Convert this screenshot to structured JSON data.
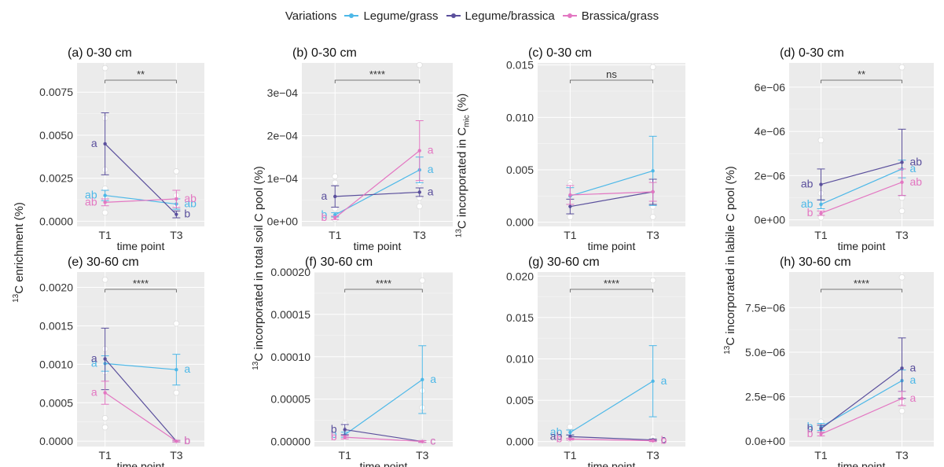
{
  "legend": {
    "title": "Variations",
    "items": [
      {
        "name": "Legume/grass",
        "color": "#4db8e8"
      },
      {
        "name": "Legume/brassica",
        "color": "#5a4f9c"
      },
      {
        "name": "Brassica/grass",
        "color": "#e377c2"
      }
    ]
  },
  "y_labels": {
    "col1_sup": "13",
    "col1": "C enrichment (%)",
    "col2_sup": "13",
    "col2": "C incorporated in total soil C pool (%)",
    "col3_sup": "13",
    "col3_a": "C incorporated in C",
    "col3_sub": "mic",
    "col3_b": " (%)",
    "col4_sup": "13",
    "col4": "C incorporated in labile C pool (%)"
  },
  "chart_data": [
    {
      "type": "line",
      "panel": "(a) 0-30 cm",
      "title": "(a) 0-30 cm",
      "xlabel": "time point",
      "categories": [
        "T1",
        "T3"
      ],
      "ylim": [
        -0.0003,
        0.0092
      ],
      "yticks": [
        0,
        0.0025,
        0.005,
        0.0075
      ],
      "yticklabels": [
        "0.0000",
        "0.0025",
        "0.0050",
        "0.0075"
      ],
      "sig": "**",
      "series": [
        {
          "name": "Legume/grass",
          "values": [
            0.0015,
            0.001
          ],
          "err": [
            0.0003,
            0.0003
          ],
          "letters": [
            "ab",
            "ab"
          ]
        },
        {
          "name": "Legume/brassica",
          "values": [
            0.0045,
            0.0004
          ],
          "err": [
            0.0018,
            0.0002
          ],
          "letters": [
            "a",
            "b"
          ]
        },
        {
          "name": "Brassica/grass",
          "values": [
            0.0011,
            0.0013
          ],
          "err": [
            0.0002,
            0.0005
          ],
          "letters": [
            "ab",
            "ab"
          ]
        }
      ],
      "points": [
        [
          0,
          0.0089
        ],
        [
          0,
          0.006
        ],
        [
          0,
          0.003
        ],
        [
          0,
          0.0019
        ],
        [
          0,
          0.0013
        ],
        [
          0,
          0.0005
        ],
        [
          1,
          0.0029
        ],
        [
          1,
          0.0015
        ],
        [
          1,
          0.0009
        ],
        [
          1,
          0.0004
        ]
      ]
    },
    {
      "type": "line",
      "panel": "(b) 0-30 cm",
      "title": "(b) 0-30 cm",
      "xlabel": "time point",
      "categories": [
        "T1",
        "T3"
      ],
      "ylim": [
        -1.2e-05,
        0.00037
      ],
      "yticks": [
        0,
        0.0001,
        0.0002,
        0.0003
      ],
      "yticklabels": [
        "0e+00",
        "1e−04",
        "2e−04",
        "3e−04"
      ],
      "sig": "****",
      "series": [
        {
          "name": "Legume/grass",
          "values": [
            1.5e-05,
            0.00012
          ],
          "err": [
            5e-06,
            3e-05
          ],
          "letters": [
            "b",
            "a"
          ]
        },
        {
          "name": "Legume/brassica",
          "values": [
            5.8e-05,
            6.8e-05
          ],
          "err": [
            2.5e-05,
            1e-05
          ],
          "letters": [
            "a",
            "a"
          ]
        },
        {
          "name": "Brassica/grass",
          "values": [
            8e-06,
            0.000165
          ],
          "err": [
            4e-06,
            7e-05
          ],
          "letters": [
            "b",
            "a"
          ]
        }
      ],
      "points": [
        [
          0,
          0.000105
        ],
        [
          0,
          9e-05
        ],
        [
          0,
          3e-05
        ],
        [
          0,
          1.2e-05
        ],
        [
          0,
          5e-06
        ],
        [
          1,
          0.000365
        ],
        [
          1,
          9e-05
        ],
        [
          1,
          5.5e-05
        ],
        [
          1,
          3.5e-05
        ]
      ]
    },
    {
      "type": "line",
      "panel": "(c) 0-30 cm",
      "title": "(c) 0-30 cm",
      "xlabel": "time point",
      "categories": [
        "T1",
        "T3"
      ],
      "ylim": [
        -0.0004,
        0.0152
      ],
      "yticks": [
        0,
        0.005,
        0.01,
        0.015
      ],
      "yticklabels": [
        "0.000",
        "0.005",
        "0.010",
        "0.015"
      ],
      "sig": "ns",
      "series": [
        {
          "name": "Legume/grass",
          "values": [
            0.0025,
            0.0049
          ],
          "err": [
            0.0008,
            0.0033
          ],
          "letters": [
            "",
            ""
          ]
        },
        {
          "name": "Legume/brassica",
          "values": [
            0.0015,
            0.0029
          ],
          "err": [
            0.0007,
            0.0012
          ],
          "letters": [
            "",
            ""
          ]
        },
        {
          "name": "Brassica/grass",
          "values": [
            0.0026,
            0.0029
          ],
          "err": [
            0.0009,
            0.0009
          ],
          "letters": [
            "",
            ""
          ]
        }
      ],
      "points": [
        [
          0,
          0.0038
        ],
        [
          0,
          0.0035
        ],
        [
          0,
          0.0015
        ],
        [
          0,
          0.0005
        ],
        [
          1,
          0.0148
        ],
        [
          1,
          0.004
        ],
        [
          1,
          0.0015
        ],
        [
          1,
          0.0005
        ]
      ]
    },
    {
      "type": "line",
      "panel": "(d) 0-30 cm",
      "title": "(d) 0-30 cm",
      "xlabel": "time point",
      "categories": [
        "T1",
        "T3"
      ],
      "ylim": [
        -3e-07,
        7.1e-06
      ],
      "yticks": [
        0,
        2e-06,
        4e-06,
        6e-06
      ],
      "yticklabels": [
        "0e+00",
        "2e−06",
        "4e−06",
        "6e−06"
      ],
      "sig": "**",
      "series": [
        {
          "name": "Legume/grass",
          "values": [
            7e-07,
            2.3e-06
          ],
          "err": [
            2e-07,
            4e-07
          ],
          "letters": [
            "ab",
            "a"
          ]
        },
        {
          "name": "Legume/brassica",
          "values": [
            1.6e-06,
            2.6e-06
          ],
          "err": [
            7e-07,
            1.5e-06
          ],
          "letters": [
            "ab",
            "ab"
          ]
        },
        {
          "name": "Brassica/grass",
          "values": [
            3e-07,
            1.7e-06
          ],
          "err": [
            1e-07,
            6e-07
          ],
          "letters": [
            "b",
            "ab"
          ]
        }
      ],
      "points": [
        [
          0,
          3.6e-06
        ],
        [
          0,
          1.2e-06
        ],
        [
          0,
          4e-07
        ],
        [
          0,
          1e-07
        ],
        [
          1,
          6.9e-06
        ],
        [
          1,
          1e-06
        ],
        [
          1,
          4e-07
        ]
      ]
    },
    {
      "type": "line",
      "panel": "(e) 30-60 cm",
      "title": "(e) 30-60 cm",
      "xlabel": "time point",
      "categories": [
        "T1",
        "T3"
      ],
      "ylim": [
        -7e-05,
        0.0022
      ],
      "yticks": [
        0,
        0.0005,
        0.001,
        0.0015,
        0.002
      ],
      "yticklabels": [
        "0.0000",
        "0.0005",
        "0.0010",
        "0.0015",
        "0.0020"
      ],
      "sig": "****",
      "series": [
        {
          "name": "Legume/grass",
          "values": [
            0.00101,
            0.00093
          ],
          "err": [
            0.0001,
            0.0002
          ],
          "letters": [
            "a",
            "a"
          ]
        },
        {
          "name": "Legume/brassica",
          "values": [
            0.00107,
            0.0
          ],
          "err": [
            0.0004,
            1e-05
          ],
          "letters": [
            "a",
            "b"
          ]
        },
        {
          "name": "Brassica/grass",
          "values": [
            0.00063,
            0.0
          ],
          "err": [
            0.00015,
            1e-05
          ],
          "letters": [
            "a",
            "b"
          ]
        }
      ],
      "points": [
        [
          0,
          0.0021
        ],
        [
          0,
          0.0012
        ],
        [
          0,
          0.0009
        ],
        [
          0,
          0.0003
        ],
        [
          0,
          0.00018
        ],
        [
          1,
          0.00153
        ],
        [
          1,
          0.00063
        ],
        [
          1,
          0.0
        ]
      ]
    },
    {
      "type": "line",
      "panel": "(f) 30-60 cm",
      "title": "(f) 30-60 cm",
      "xlabel": "time point",
      "categories": [
        "T1",
        "T3"
      ],
      "ylim": [
        -6e-06,
        0.0002
      ],
      "yticks": [
        0,
        5e-05,
        0.0001,
        0.00015,
        0.0002
      ],
      "yticklabels": [
        "0.00000",
        "0.00005",
        "0.00010",
        "0.00015",
        "0.00020"
      ],
      "sig": "****",
      "series": [
        {
          "name": "Legume/grass",
          "values": [
            8e-06,
            7.3e-05
          ],
          "err": [
            3e-06,
            4e-05
          ],
          "letters": [
            "b",
            "a"
          ]
        },
        {
          "name": "Legume/brassica",
          "values": [
            1.4e-05,
            0.0
          ],
          "err": [
            6e-06,
            1e-06
          ],
          "letters": [
            "b",
            "c"
          ]
        },
        {
          "name": "Brassica/grass",
          "values": [
            5e-06,
            0.0
          ],
          "err": [
            2e-06,
            1e-06
          ],
          "letters": [
            "b",
            "c"
          ]
        }
      ],
      "points": [
        [
          0,
          2.2e-05
        ],
        [
          0,
          2e-05
        ],
        [
          0,
          8e-06
        ],
        [
          1,
          0.00019
        ],
        [
          1,
          6e-05
        ],
        [
          1,
          4e-05
        ],
        [
          1,
          0.0
        ]
      ]
    },
    {
      "type": "line",
      "panel": "(g) 30-60 cm",
      "title": "(g) 30-60 cm",
      "xlabel": "time point",
      "categories": [
        "T1",
        "T3"
      ],
      "ylim": [
        -0.0006,
        0.0205
      ],
      "yticks": [
        0,
        0.005,
        0.01,
        0.015,
        0.02
      ],
      "yticklabels": [
        "0.000",
        "0.005",
        "0.010",
        "0.015",
        "0.020"
      ],
      "sig": "****",
      "series": [
        {
          "name": "Legume/grass",
          "values": [
            0.0011,
            0.0073
          ],
          "err": [
            0.0003,
            0.0043
          ],
          "letters": [
            "ab",
            "a"
          ]
        },
        {
          "name": "Legume/brassica",
          "values": [
            0.0006,
            0.0002
          ],
          "err": [
            0.0002,
            0.0001
          ],
          "letters": [
            "ab",
            "c"
          ]
        },
        {
          "name": "Brassica/grass",
          "values": [
            0.0003,
            0.0001
          ],
          "err": [
            0.0001,
            0.0001
          ],
          "letters": [
            "b",
            "b"
          ]
        }
      ],
      "points": [
        [
          0,
          0.0018
        ],
        [
          0,
          0.001
        ],
        [
          0,
          0.0003
        ],
        [
          1,
          0.0195
        ],
        [
          1,
          0.0005
        ],
        [
          1,
          0.0001
        ]
      ]
    },
    {
      "type": "line",
      "panel": "(h) 30-60 cm",
      "title": "(h) 30-60 cm",
      "xlabel": "time point",
      "categories": [
        "T1",
        "T3"
      ],
      "ylim": [
        -3e-07,
        9.5e-06
      ],
      "yticks": [
        0,
        2.5e-06,
        5e-06,
        7.5e-06
      ],
      "yticklabels": [
        "0.0e+00",
        "2.5e−06",
        "5.0e−06",
        "7.5e−06"
      ],
      "sig": "****",
      "series": [
        {
          "name": "Legume/grass",
          "values": [
            8e-07,
            3.4e-06
          ],
          "err": [
            2e-07,
            6e-07
          ],
          "letters": [
            "b",
            "a"
          ]
        },
        {
          "name": "Legume/brassica",
          "values": [
            7e-07,
            4.1e-06
          ],
          "err": [
            2e-07,
            1.7e-06
          ],
          "letters": [
            "b",
            "a"
          ]
        },
        {
          "name": "Brassica/grass",
          "values": [
            4e-07,
            2.4e-06
          ],
          "err": [
            1e-07,
            4e-07
          ],
          "letters": [
            "b",
            "a"
          ]
        }
      ],
      "points": [
        [
          0,
          1.1e-06
        ],
        [
          0,
          4e-07
        ],
        [
          1,
          9.2e-06
        ],
        [
          1,
          1.7e-06
        ],
        [
          1,
          2.2e-06
        ]
      ]
    }
  ]
}
